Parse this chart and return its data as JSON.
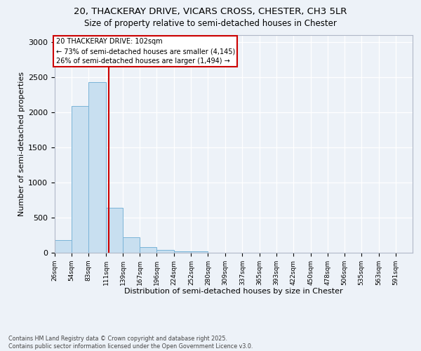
{
  "title_line1": "20, THACKERAY DRIVE, VICARS CROSS, CHESTER, CH3 5LR",
  "title_line2": "Size of property relative to semi-detached houses in Chester",
  "xlabel": "Distribution of semi-detached houses by size in Chester",
  "ylabel": "Number of semi-detached properties",
  "bar_color": "#c8dff0",
  "bar_edge_color": "#7ab4d8",
  "vline_color": "#cc0000",
  "vline_x": 102,
  "annotation_line1": "20 THACKERAY DRIVE: 102sqm",
  "annotation_line2": "← 73% of semi-detached houses are smaller (4,145)",
  "annotation_line3": "26% of semi-detached houses are larger (1,494) →",
  "annotation_box_edgecolor": "#cc0000",
  "background_color": "#edf2f8",
  "categories": [
    "26sqm",
    "54sqm",
    "83sqm",
    "111sqm",
    "139sqm",
    "167sqm",
    "196sqm",
    "224sqm",
    "252sqm",
    "280sqm",
    "309sqm",
    "337sqm",
    "365sqm",
    "393sqm",
    "422sqm",
    "450sqm",
    "478sqm",
    "506sqm",
    "535sqm",
    "563sqm",
    "591sqm"
  ],
  "bin_edges": [
    12,
    40,
    68,
    97,
    125,
    153,
    181,
    210,
    238,
    266,
    294,
    323,
    351,
    379,
    407,
    436,
    464,
    492,
    520,
    549,
    577,
    605
  ],
  "bar_heights": [
    185,
    2095,
    2435,
    645,
    220,
    80,
    45,
    25,
    20,
    0,
    0,
    0,
    0,
    0,
    0,
    0,
    0,
    0,
    0,
    0,
    0
  ],
  "ylim": [
    0,
    3100
  ],
  "yticks": [
    0,
    500,
    1000,
    1500,
    2000,
    2500,
    3000
  ],
  "footnote_line1": "Contains HM Land Registry data © Crown copyright and database right 2025.",
  "footnote_line2": "Contains public sector information licensed under the Open Government Licence v3.0."
}
